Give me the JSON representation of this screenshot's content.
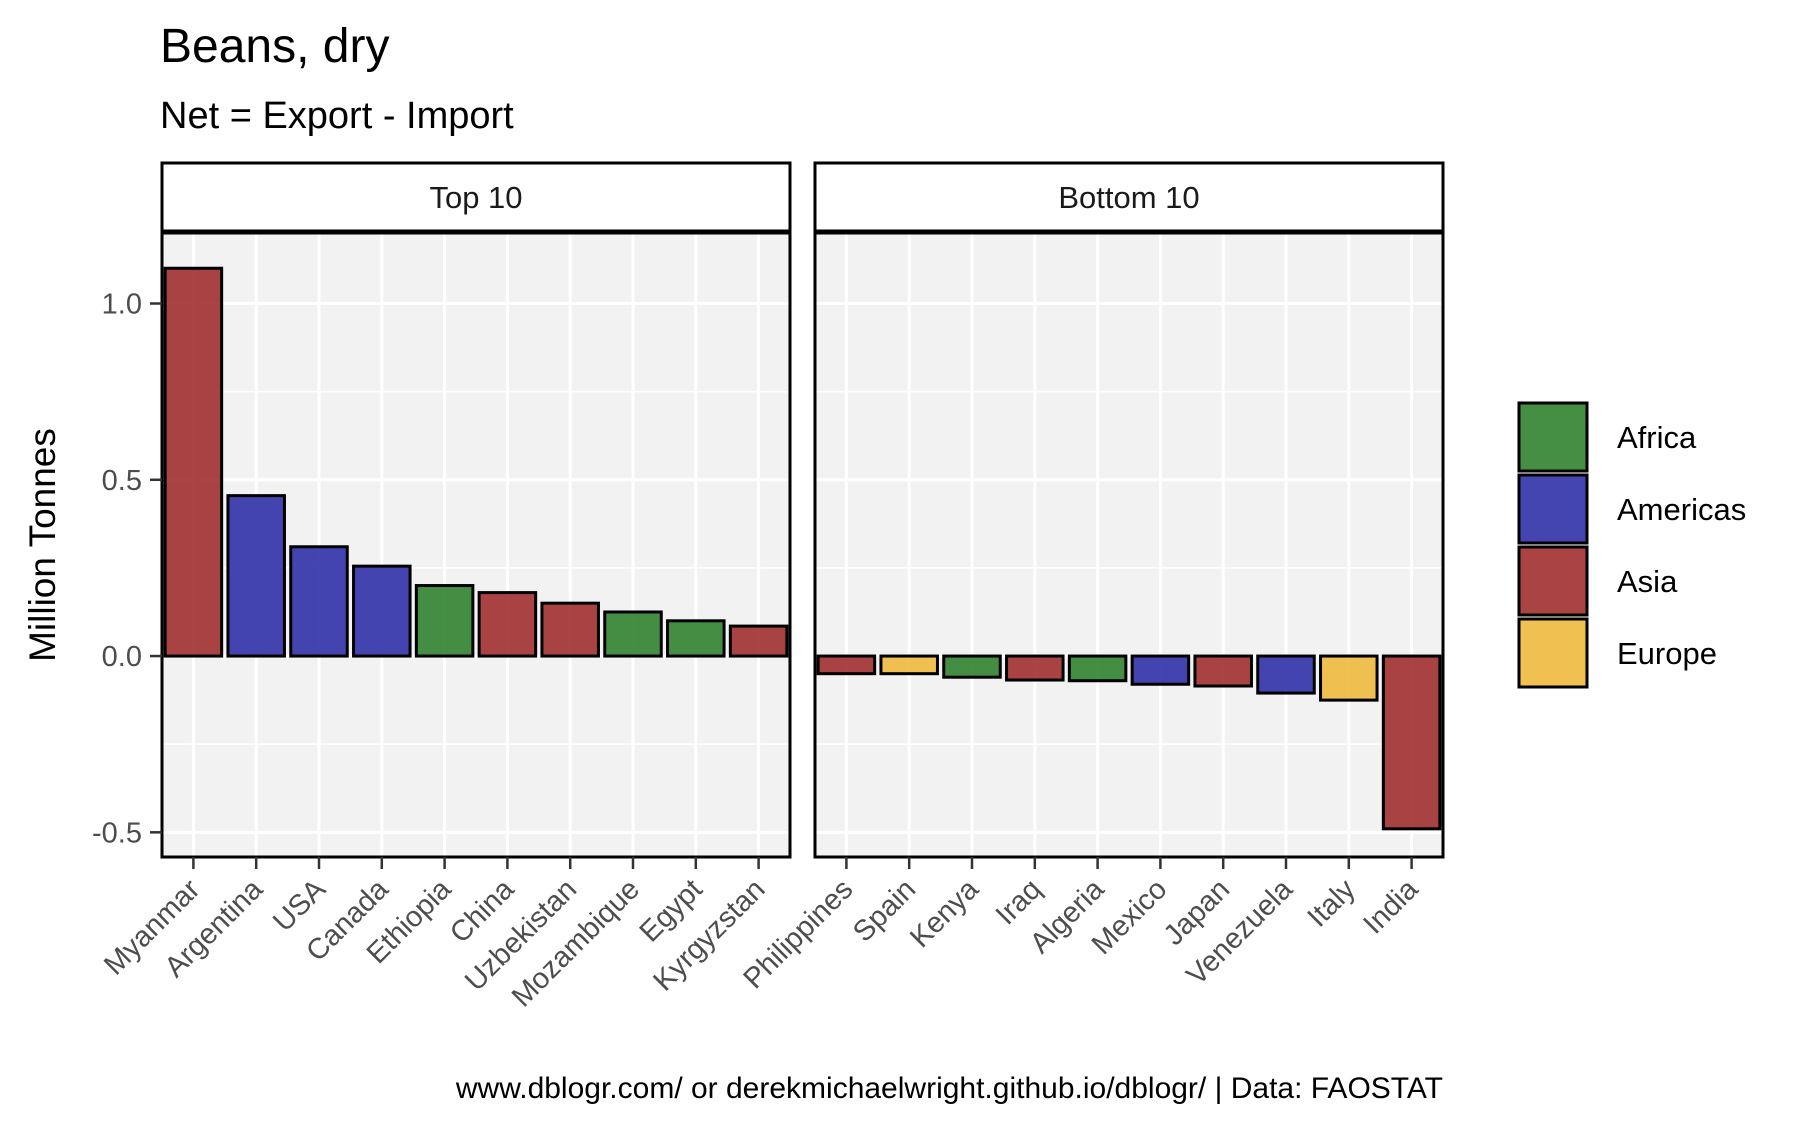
{
  "chart_data": {
    "type": "bar",
    "title": "Beans, dry",
    "subtitle": "Net = Export - Import",
    "ylabel": "Million Tonnes",
    "ylim": [
      -0.57,
      1.2
    ],
    "yticks": [
      -0.5,
      0.0,
      0.5,
      1.0
    ],
    "ytick_labels": [
      "-0.5",
      "0.0",
      "0.5",
      "1.0"
    ],
    "grid": true,
    "legend": {
      "title": "",
      "placement": "right",
      "entries": [
        {
          "name": "Africa",
          "color": "#2a7f2a"
        },
        {
          "name": "Americas",
          "color": "#2b2ba6"
        },
        {
          "name": "Asia",
          "color": "#9e2a2a"
        },
        {
          "name": "Europe",
          "color": "#eeb838"
        }
      ]
    },
    "panels": [
      {
        "name": "Top 10",
        "categories": [
          "Myanmar",
          "Argentina",
          "USA",
          "Canada",
          "Ethiopia",
          "China",
          "Uzbekistan",
          "Mozambique",
          "Egypt",
          "Kyrgyzstan"
        ],
        "values": [
          1.1,
          0.455,
          0.31,
          0.255,
          0.2,
          0.18,
          0.15,
          0.125,
          0.1,
          0.085
        ],
        "regions": [
          "Asia",
          "Americas",
          "Americas",
          "Americas",
          "Africa",
          "Asia",
          "Asia",
          "Africa",
          "Africa",
          "Asia"
        ]
      },
      {
        "name": "Bottom 10",
        "categories": [
          "Philippines",
          "Spain",
          "Kenya",
          "Iraq",
          "Algeria",
          "Mexico",
          "Japan",
          "Venezuela",
          "Italy",
          "India"
        ],
        "values": [
          -0.05,
          -0.05,
          -0.06,
          -0.068,
          -0.07,
          -0.08,
          -0.085,
          -0.105,
          -0.125,
          -0.49
        ],
        "regions": [
          "Asia",
          "Europe",
          "Africa",
          "Asia",
          "Africa",
          "Americas",
          "Asia",
          "Americas",
          "Europe",
          "Asia"
        ]
      }
    ],
    "caption": "www.dblogr.com/ or derekmichaelwright.github.io/dblogr/ | Data: FAOSTAT"
  }
}
